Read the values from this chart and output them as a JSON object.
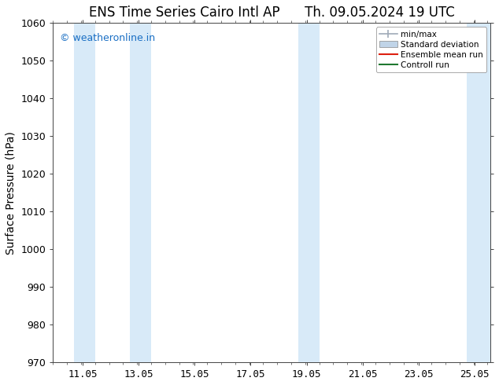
{
  "title_left": "ENS Time Series Cairo Intl AP",
  "title_right": "Th. 09.05.2024 19 UTC",
  "ylabel": "Surface Pressure (hPa)",
  "ylim": [
    970,
    1060
  ],
  "yticks": [
    970,
    980,
    990,
    1000,
    1010,
    1020,
    1030,
    1040,
    1050,
    1060
  ],
  "xlim": [
    10.0,
    25.6
  ],
  "xticks": [
    11.05,
    13.05,
    15.05,
    17.05,
    19.05,
    21.05,
    23.05,
    25.05
  ],
  "xtick_labels": [
    "11.05",
    "13.05",
    "15.05",
    "17.05",
    "19.05",
    "21.05",
    "23.05",
    "25.05"
  ],
  "bg_color": "#ffffff",
  "plot_bg_color": "#ffffff",
  "watermark": "© weatheronline.in",
  "watermark_color": "#1a6fc4",
  "shaded_regions": [
    {
      "x_start": 10.75,
      "x_end": 11.5,
      "color": "#d8eaf8"
    },
    {
      "x_start": 12.75,
      "x_end": 13.5,
      "color": "#d8eaf8"
    },
    {
      "x_start": 18.75,
      "x_end": 19.5,
      "color": "#d8eaf8"
    },
    {
      "x_start": 24.75,
      "x_end": 25.6,
      "color": "#d8eaf8"
    }
  ],
  "legend_items": [
    {
      "label": "min/max",
      "color": "#a0aab8",
      "type": "errorbar"
    },
    {
      "label": "Standard deviation",
      "color": "#c0d4e8",
      "type": "bar"
    },
    {
      "label": "Ensemble mean run",
      "color": "#dd2010",
      "type": "line"
    },
    {
      "label": "Controll run",
      "color": "#207830",
      "type": "line"
    }
  ],
  "title_fontsize": 12,
  "tick_fontsize": 9,
  "ylabel_fontsize": 10,
  "spine_color": "#444444"
}
